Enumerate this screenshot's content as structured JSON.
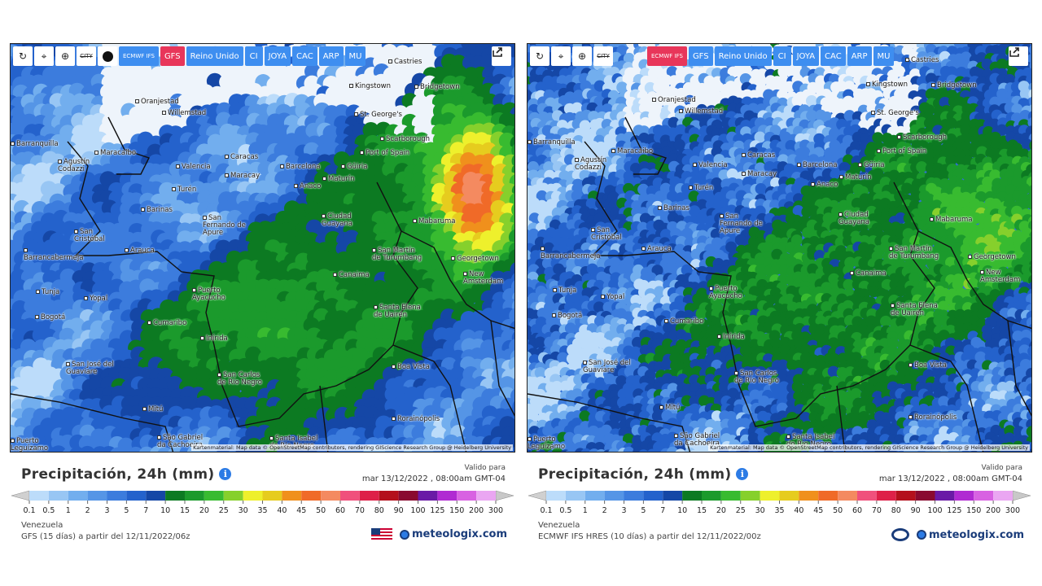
{
  "panels": [
    {
      "toolbar": [
        {
          "label": "CITY",
          "active": false
        },
        {
          "label": "ECMWF IFS",
          "active": false
        },
        {
          "label": "GFS",
          "active": true
        },
        {
          "label": "Reino Unido",
          "active": false
        },
        {
          "label": "CI",
          "active": false
        },
        {
          "label": "JOYA",
          "active": false
        },
        {
          "label": "CAC",
          "active": false
        },
        {
          "label": "ARP",
          "active": false
        },
        {
          "label": "MU",
          "active": false
        }
      ],
      "cities": [
        "Castries",
        "Kingstown",
        "Bridgetown",
        "St. George's",
        "Oranjestad",
        "Willemstad",
        "Scarborough",
        "Port of Spain",
        "Barranquilla",
        "Maracaibo",
        "Agustín Codazzi",
        "Valencia",
        "Caracas",
        "Maracay",
        "Barcelona",
        "Güiria",
        "Maturín",
        "Anaco",
        "Turén",
        "Barinas",
        "San Fernando de Apure",
        "Ciudad Guayana",
        "Mabaruma",
        "San Cristóbal",
        "Barrancabermeja",
        "Arauca",
        "San Martín de Turumbang",
        "Georgetown",
        "New Amsterdam",
        "Canaima",
        "Tunja",
        "Yopal",
        "Puerto Ayacucho",
        "Bogotá",
        "Cumaribo",
        "Santa Elena de Uairén",
        "Inírida",
        "San José del Guaviare",
        "Boa Vista",
        "San Carlos de Río Negro",
        "Mitú",
        "Rorainópolis",
        "São Gabriel da Cachoeira",
        "Santa Isabel do Rio Negro",
        "Puerto Leguízamo"
      ],
      "attribution": "Kartenmaterial: Map data © OpenStreetMap contributors, rendering GIScience Research Group @ Heidelberg University",
      "title": "Precipitación, 24h (mm)",
      "valid_label": "Valido para",
      "valid_time": "mar 13/12/2022 , 08:00am GMT-04",
      "scale": [
        0.1,
        0.5,
        1,
        2,
        3,
        5,
        7,
        10,
        15,
        20,
        25,
        30,
        35,
        40,
        45,
        50,
        60,
        70,
        80,
        90,
        100,
        125,
        150,
        200,
        300
      ],
      "region": "Venezuela",
      "model_run": "GFS (15 días) a partir del 12/11/2022/06z",
      "logo": "meteologix.com"
    },
    {
      "toolbar": [
        {
          "label": "CITY",
          "active": false
        },
        {
          "label": "ECMWF IFS",
          "active": true
        },
        {
          "label": "GFS",
          "active": false
        },
        {
          "label": "Reino Unido",
          "active": false
        },
        {
          "label": "CI",
          "active": false
        },
        {
          "label": "JOYA",
          "active": false
        },
        {
          "label": "CAC",
          "active": false
        },
        {
          "label": "ARP",
          "active": false
        },
        {
          "label": "MU",
          "active": false
        }
      ],
      "cities": [
        "Castries",
        "Kingstown",
        "Bridgetown",
        "St. George's",
        "Oranjestad",
        "Willemstad",
        "Scarborough",
        "Port of Spain",
        "Barranquilla",
        "Maracaibo",
        "Agustín Codazzi",
        "Valencia",
        "Caracas",
        "Maracay",
        "Barcelona",
        "Güiria",
        "Maturín",
        "Anaco",
        "Turén",
        "Barinas",
        "San Fernando de Apure",
        "Ciudad Guayana",
        "Mabaruma",
        "San Cristóbal",
        "Barrancabermeja",
        "Arauca",
        "San Martín de Turumbang",
        "Georgetown",
        "New Amsterdam",
        "Canaima",
        "Tunja",
        "Yopal",
        "Puerto Ayacucho",
        "Bogotá",
        "Cumaribo",
        "Santa Elena de Uairén",
        "Inírida",
        "San José del Guaviare",
        "Boa Vista",
        "San Carlos de Río Negro",
        "Mitú",
        "Rorainópolis",
        "São Gabriel da Cachoeira",
        "Santa Isabel do Rio Negro",
        "Puerto Leguízamo"
      ],
      "attribution": "Kartenmaterial: Map data © OpenStreetMap contributors, rendering GIScience Research Group @ Heidelberg University",
      "title": "Precipitación, 24h (mm)",
      "valid_label": "Valido para",
      "valid_time": "mar 13/12/2022 , 08:00am GMT-04",
      "scale": [
        0.1,
        0.5,
        1,
        2,
        3,
        5,
        7,
        10,
        15,
        20,
        25,
        30,
        35,
        40,
        45,
        50,
        60,
        70,
        80,
        90,
        100,
        125,
        150,
        200,
        300
      ],
      "region": "Venezuela",
      "model_run": "ECMWF IFS HRES (10 días) a partir del 12/11/2022/00z",
      "logo": "meteologix.com"
    }
  ]
}
